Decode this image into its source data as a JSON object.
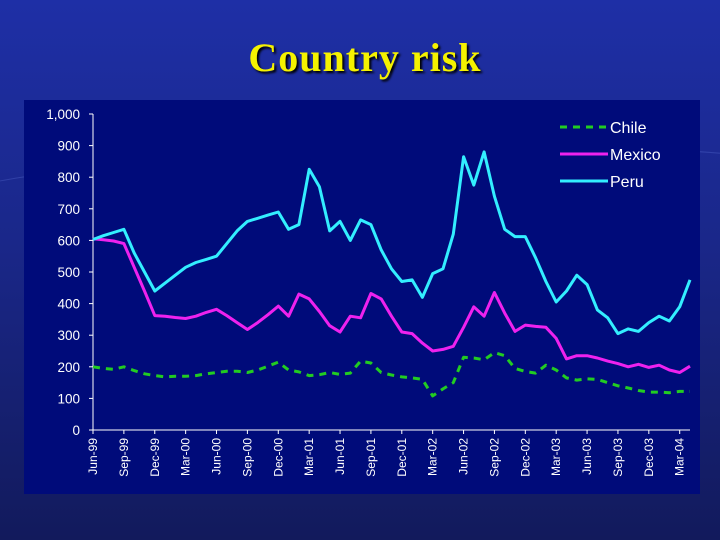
{
  "title": "Country risk",
  "colors": {
    "background": "#1a2789",
    "plot_area": "#000b7a",
    "title": "#f5f200",
    "chile": "#22cc22",
    "mexico": "#ee22ee",
    "peru": "#33eeff",
    "axis_text": "#ffffff"
  },
  "chart_data": {
    "type": "line",
    "title": "",
    "xlabel": "",
    "ylabel": "",
    "ylim": [
      0,
      1000
    ],
    "yticks": [
      "0",
      "100",
      "200",
      "300",
      "400",
      "500",
      "600",
      "700",
      "800",
      "900",
      "1,000"
    ],
    "x_tick_labels": [
      "Jun-99",
      "Sep-99",
      "Dec-99",
      "Mar-00",
      "Jun-00",
      "Sep-00",
      "Dec-00",
      "Mar-01",
      "Jun-01",
      "Sep-01",
      "Dec-01",
      "Mar-02",
      "Jun-02",
      "Sep-02",
      "Dec-02",
      "Mar-03",
      "Jun-03",
      "Sep-03",
      "Dec-03",
      "Mar-04"
    ],
    "x_range": [
      "Jun-99",
      "Apr-04"
    ],
    "grid": false,
    "legend_position": "top-right",
    "series": [
      {
        "name": "Chile",
        "style": "dashed",
        "x": [
          "Jun-99",
          "Jul-99",
          "Aug-99",
          "Sep-99",
          "Oct-99",
          "Nov-99",
          "Dec-99",
          "Jan-00",
          "Feb-00",
          "Mar-00",
          "Apr-00",
          "May-00",
          "Jun-00",
          "Jul-00",
          "Aug-00",
          "Sep-00",
          "Oct-00",
          "Nov-00",
          "Dec-00",
          "Jan-01",
          "Feb-01",
          "Mar-01",
          "Apr-01",
          "May-01",
          "Jun-01",
          "Jul-01",
          "Aug-01",
          "Sep-01",
          "Oct-01",
          "Nov-01",
          "Dec-01",
          "Jan-02",
          "Feb-02",
          "Mar-02",
          "Apr-02",
          "May-02",
          "Jun-02",
          "Jul-02",
          "Aug-02",
          "Sep-02",
          "Oct-02",
          "Nov-02",
          "Dec-02",
          "Jan-03",
          "Feb-03",
          "Mar-03",
          "Apr-03",
          "May-03",
          "Jun-03",
          "Jul-03",
          "Aug-03",
          "Sep-03",
          "Oct-03",
          "Nov-03",
          "Dec-03",
          "Jan-04",
          "Feb-04",
          "Mar-04",
          "Apr-04"
        ],
        "values": [
          200,
          195,
          192,
          200,
          188,
          178,
          172,
          168,
          170,
          170,
          172,
          178,
          182,
          186,
          186,
          182,
          190,
          202,
          215,
          190,
          184,
          172,
          175,
          182,
          176,
          180,
          218,
          212,
          182,
          174,
          168,
          165,
          160,
          108,
          130,
          150,
          230,
          228,
          222,
          245,
          235,
          195,
          185,
          180,
          205,
          190,
          165,
          158,
          162,
          160,
          150,
          140,
          133,
          125,
          120,
          120,
          118,
          122,
          122
        ]
      },
      {
        "name": "Mexico",
        "style": "solid",
        "x": [
          "Jun-99",
          "Jul-99",
          "Aug-99",
          "Sep-99",
          "Oct-99",
          "Nov-99",
          "Dec-99",
          "Jan-00",
          "Feb-00",
          "Mar-00",
          "Apr-00",
          "May-00",
          "Jun-00",
          "Jul-00",
          "Aug-00",
          "Sep-00",
          "Oct-00",
          "Nov-00",
          "Dec-00",
          "Jan-01",
          "Feb-01",
          "Mar-01",
          "Apr-01",
          "May-01",
          "Jun-01",
          "Jul-01",
          "Aug-01",
          "Sep-01",
          "Oct-01",
          "Nov-01",
          "Dec-01",
          "Jan-02",
          "Feb-02",
          "Mar-02",
          "Apr-02",
          "May-02",
          "Jun-02",
          "Jul-02",
          "Aug-02",
          "Sep-02",
          "Oct-02",
          "Nov-02",
          "Dec-02",
          "Jan-03",
          "Feb-03",
          "Mar-03",
          "Apr-03",
          "May-03",
          "Jun-03",
          "Jul-03",
          "Aug-03",
          "Sep-03",
          "Oct-03",
          "Nov-03",
          "Dec-03",
          "Jan-04",
          "Feb-04",
          "Mar-04",
          "Apr-04"
        ],
        "values": [
          605,
          602,
          598,
          590,
          515,
          440,
          362,
          360,
          356,
          353,
          360,
          372,
          382,
          362,
          340,
          318,
          340,
          365,
          392,
          360,
          430,
          415,
          375,
          330,
          310,
          360,
          355,
          432,
          415,
          360,
          310,
          305,
          275,
          250,
          255,
          265,
          325,
          390,
          360,
          435,
          370,
          312,
          332,
          328,
          325,
          290,
          225,
          235,
          235,
          228,
          218,
          210,
          200,
          208,
          198,
          205,
          190,
          182,
          202
        ]
      },
      {
        "name": "Peru",
        "style": "solid",
        "x": [
          "Jun-99",
          "Jul-99",
          "Aug-99",
          "Sep-99",
          "Oct-99",
          "Nov-99",
          "Dec-99",
          "Jan-00",
          "Feb-00",
          "Mar-00",
          "Apr-00",
          "May-00",
          "Jun-00",
          "Jul-00",
          "Aug-00",
          "Sep-00",
          "Oct-00",
          "Nov-00",
          "Dec-00",
          "Jan-01",
          "Feb-01",
          "Mar-01",
          "Apr-01",
          "May-01",
          "Jun-01",
          "Jul-01",
          "Aug-01",
          "Sep-01",
          "Oct-01",
          "Nov-01",
          "Dec-01",
          "Jan-02",
          "Feb-02",
          "Mar-02",
          "Apr-02",
          "May-02",
          "Jun-02",
          "Jul-02",
          "Aug-02",
          "Sep-02",
          "Oct-02",
          "Nov-02",
          "Dec-02",
          "Jan-03",
          "Feb-03",
          "Mar-03",
          "Apr-03",
          "May-03",
          "Jun-03",
          "Jul-03",
          "Aug-03",
          "Sep-03",
          "Oct-03",
          "Nov-03",
          "Dec-03",
          "Jan-04",
          "Feb-04",
          "Mar-04",
          "Apr-04"
        ],
        "values": [
          603,
          615,
          625,
          635,
          560,
          500,
          440,
          465,
          490,
          515,
          530,
          540,
          550,
          590,
          630,
          660,
          670,
          680,
          690,
          635,
          650,
          825,
          770,
          630,
          660,
          600,
          665,
          650,
          570,
          510,
          470,
          475,
          420,
          495,
          510,
          620,
          865,
          775,
          880,
          740,
          635,
          612,
          612,
          545,
          470,
          405,
          440,
          490,
          460,
          380,
          355,
          305,
          320,
          312,
          340,
          360,
          345,
          390,
          475
        ]
      }
    ]
  }
}
